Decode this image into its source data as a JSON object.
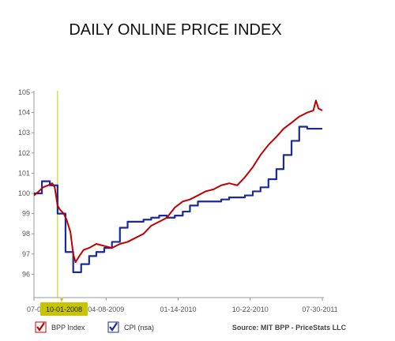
{
  "chart_data": {
    "type": "line",
    "title": "DAILY ONLINE PRICE INDEX",
    "xlabel": "",
    "ylabel": "",
    "x_range": [
      "2008-07-01",
      "2011-07-30"
    ],
    "ylim": [
      95,
      105
    ],
    "y_ticks": [
      96,
      97,
      98,
      99,
      100,
      101,
      102,
      103,
      104,
      105
    ],
    "x_tick_labels": [
      {
        "date": "2008-07-01",
        "label": "07-0"
      },
      {
        "date": "2009-04-08",
        "label": "04-08-2009"
      },
      {
        "date": "2010-01-14",
        "label": "01-14-2010"
      },
      {
        "date": "2010-10-22",
        "label": "10-22-2010"
      },
      {
        "date": "2011-07-30",
        "label": "07-30-2011"
      }
    ],
    "highlight": {
      "date": "2008-10-01",
      "label": "10-01-2008",
      "color": "#c8c400"
    },
    "grid": false,
    "legend_position": "bottom-left",
    "source": "Source: MIT BPP - PriceStats LLC",
    "series": [
      {
        "name": "BPP Index",
        "color": "#c00000",
        "style": "line",
        "x": [
          "2008-07-01",
          "2008-07-20",
          "2008-08-05",
          "2008-08-25",
          "2008-09-10",
          "2008-09-20",
          "2008-10-01",
          "2008-10-10",
          "2008-10-25",
          "2008-11-05",
          "2008-11-20",
          "2008-12-01",
          "2008-12-10",
          "2008-12-25",
          "2009-01-10",
          "2009-02-01",
          "2009-03-01",
          "2009-04-01",
          "2009-05-01",
          "2009-06-01",
          "2009-07-01",
          "2009-08-01",
          "2009-09-01",
          "2009-10-01",
          "2009-11-01",
          "2009-12-01",
          "2010-01-01",
          "2010-02-01",
          "2010-03-01",
          "2010-04-01",
          "2010-05-01",
          "2010-06-01",
          "2010-07-01",
          "2010-08-01",
          "2010-09-01",
          "2010-10-01",
          "2010-11-01",
          "2010-12-01",
          "2011-01-01",
          "2011-02-01",
          "2011-03-01",
          "2011-04-01",
          "2011-05-01",
          "2011-06-01",
          "2011-06-25",
          "2011-07-05",
          "2011-07-15",
          "2011-07-30"
        ],
        "y": [
          99.9,
          100.1,
          100.3,
          100.4,
          100.5,
          100.3,
          99.4,
          99.2,
          99.0,
          98.7,
          98.1,
          97.0,
          96.6,
          96.9,
          97.2,
          97.3,
          97.5,
          97.4,
          97.3,
          97.5,
          97.6,
          97.8,
          98.0,
          98.4,
          98.6,
          98.8,
          99.3,
          99.6,
          99.7,
          99.9,
          100.1,
          100.2,
          100.4,
          100.5,
          100.4,
          100.8,
          101.3,
          101.9,
          102.4,
          102.8,
          103.2,
          103.5,
          103.8,
          104.0,
          104.1,
          104.6,
          104.2,
          104.1
        ]
      },
      {
        "name": "CPI (nsa)",
        "color": "#1a2a9a",
        "style": "step",
        "x": [
          "2008-07-01",
          "2008-08-01",
          "2008-09-01",
          "2008-10-01",
          "2008-11-01",
          "2008-12-01",
          "2009-01-01",
          "2009-02-01",
          "2009-03-01",
          "2009-04-01",
          "2009-05-01",
          "2009-06-01",
          "2009-07-01",
          "2009-08-01",
          "2009-09-01",
          "2009-10-01",
          "2009-11-01",
          "2009-12-01",
          "2010-01-01",
          "2010-02-01",
          "2010-03-01",
          "2010-04-01",
          "2010-05-01",
          "2010-06-01",
          "2010-07-01",
          "2010-08-01",
          "2010-09-01",
          "2010-10-01",
          "2010-11-01",
          "2010-12-01",
          "2011-01-01",
          "2011-02-01",
          "2011-03-01",
          "2011-04-01",
          "2011-05-01",
          "2011-06-01",
          "2011-07-30"
        ],
        "y": [
          100.0,
          100.6,
          100.4,
          99.0,
          97.1,
          96.1,
          96.5,
          96.9,
          97.1,
          97.3,
          97.6,
          98.3,
          98.6,
          98.6,
          98.7,
          98.8,
          98.9,
          98.8,
          98.9,
          99.1,
          99.4,
          99.6,
          99.6,
          99.6,
          99.7,
          99.8,
          99.8,
          99.9,
          100.1,
          100.3,
          100.7,
          101.2,
          101.9,
          102.6,
          103.3,
          103.2,
          103.2
        ]
      }
    ]
  }
}
